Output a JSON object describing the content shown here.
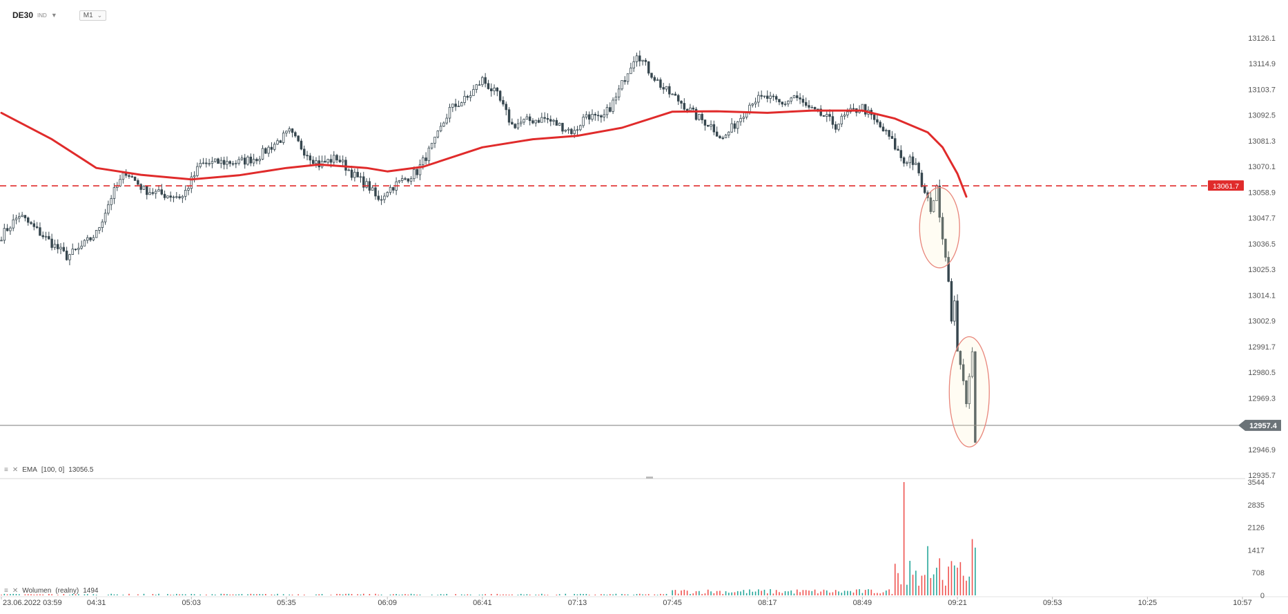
{
  "instrument": {
    "symbol": "DE30",
    "subtype": "IND",
    "timeframe": "M1"
  },
  "indicators": {
    "ema_label": "EMA",
    "ema_params": "[100, 0]",
    "ema_value": "13056.5",
    "volume_label": "Wolumen",
    "volume_params": "(realny)",
    "volume_value": "1494"
  },
  "colors": {
    "ema": "#e02b2b",
    "candle": "#37474f",
    "volume_up": "#26a69a",
    "volume_down": "#ef5350",
    "highlight_ellipse": "#e8857a",
    "level_line": "#e02b2b",
    "current_price_bg": "#6b7378",
    "level_label_bg": "#e02b2b"
  },
  "icons": [
    "settings-lines-icon",
    "close-x-icon",
    "dropdown-caret-icon"
  ],
  "chart_data": {
    "type": "candlestick",
    "price_axis_ticks": [
      "13126.1",
      "13114.9",
      "13103.7",
      "13092.5",
      "13081.3",
      "13070.1",
      "13058.9",
      "13047.7",
      "13036.5",
      "13025.3",
      "13014.1",
      "13002.9",
      "12991.7",
      "12980.5",
      "12969.3",
      "12957.4",
      "12946.9",
      "12935.7"
    ],
    "price_range": [
      12935.7,
      13126.1
    ],
    "volume_axis_ticks": [
      "3544",
      "2835",
      "2126",
      "1417",
      "708",
      "0"
    ],
    "volume_range": [
      0,
      3544
    ],
    "time_axis_labels": [
      "23.06.2022 03:59",
      "04:31",
      "05:03",
      "05:35",
      "06:09",
      "06:41",
      "07:13",
      "07:45",
      "08:17",
      "08:49",
      "09:21",
      "09:53",
      "10:25",
      "10:57"
    ],
    "x_range": [
      "03:59",
      "10:57"
    ],
    "horizontal_level": {
      "value": 13061.7,
      "label": "13061.7",
      "style": "dashed"
    },
    "current_price": {
      "value": 12957.4,
      "label": "12957.4"
    },
    "ema_series_anchors": [
      {
        "time": "03:59",
        "value": 13093.5
      },
      {
        "time": "04:16",
        "value": 13082.0
      },
      {
        "time": "04:31",
        "value": 13069.5
      },
      {
        "time": "04:46",
        "value": 13066.5
      },
      {
        "time": "05:03",
        "value": 13064.5
      },
      {
        "time": "05:19",
        "value": 13066.3
      },
      {
        "time": "05:35",
        "value": 13069.5
      },
      {
        "time": "05:46",
        "value": 13071.0
      },
      {
        "time": "06:02",
        "value": 13069.5
      },
      {
        "time": "06:09",
        "value": 13068.0
      },
      {
        "time": "06:21",
        "value": 13070.0
      },
      {
        "time": "06:41",
        "value": 13078.5
      },
      {
        "time": "06:58",
        "value": 13082.0
      },
      {
        "time": "07:13",
        "value": 13083.5
      },
      {
        "time": "07:28",
        "value": 13087.0
      },
      {
        "time": "07:45",
        "value": 13094.0
      },
      {
        "time": "08:00",
        "value": 13094.2
      },
      {
        "time": "08:17",
        "value": 13093.5
      },
      {
        "time": "08:32",
        "value": 13094.5
      },
      {
        "time": "08:49",
        "value": 13094.5
      },
      {
        "time": "09:00",
        "value": 13091.0
      },
      {
        "time": "09:11",
        "value": 13085.0
      },
      {
        "time": "09:16",
        "value": 13078.5
      },
      {
        "time": "09:21",
        "value": 13067.0
      },
      {
        "time": "09:24",
        "value": 13057.0
      }
    ],
    "price_anchors": [
      {
        "time": "03:59",
        "value": 13040
      },
      {
        "time": "04:05",
        "value": 13049
      },
      {
        "time": "04:13",
        "value": 13040
      },
      {
        "time": "04:21",
        "value": 13031
      },
      {
        "time": "04:25",
        "value": 13034
      },
      {
        "time": "04:31",
        "value": 13041
      },
      {
        "time": "04:36",
        "value": 13057
      },
      {
        "time": "04:41",
        "value": 13068
      },
      {
        "time": "04:47",
        "value": 13060
      },
      {
        "time": "04:53",
        "value": 13058
      },
      {
        "time": "05:00",
        "value": 13057
      },
      {
        "time": "05:06",
        "value": 13071
      },
      {
        "time": "05:13",
        "value": 13072
      },
      {
        "time": "05:19",
        "value": 13072
      },
      {
        "time": "05:25",
        "value": 13074
      },
      {
        "time": "05:31",
        "value": 13080
      },
      {
        "time": "05:36",
        "value": 13085
      },
      {
        "time": "05:41",
        "value": 13077
      },
      {
        "time": "05:46",
        "value": 13071
      },
      {
        "time": "05:52",
        "value": 13074
      },
      {
        "time": "05:58",
        "value": 13066
      },
      {
        "time": "06:03",
        "value": 13061
      },
      {
        "time": "06:06",
        "value": 13055
      },
      {
        "time": "06:09",
        "value": 13060
      },
      {
        "time": "06:14",
        "value": 13064
      },
      {
        "time": "06:19",
        "value": 13068
      },
      {
        "time": "06:25",
        "value": 13081
      },
      {
        "time": "06:30",
        "value": 13095
      },
      {
        "time": "06:36",
        "value": 13100
      },
      {
        "time": "06:41",
        "value": 13108
      },
      {
        "time": "06:46",
        "value": 13101
      },
      {
        "time": "06:51",
        "value": 13088
      },
      {
        "time": "06:56",
        "value": 13090
      },
      {
        "time": "07:02",
        "value": 13091
      },
      {
        "time": "07:07",
        "value": 13088
      },
      {
        "time": "07:12",
        "value": 13085
      },
      {
        "time": "07:16",
        "value": 13093
      },
      {
        "time": "07:21",
        "value": 13090
      },
      {
        "time": "07:26",
        "value": 13100
      },
      {
        "time": "07:30",
        "value": 13112
      },
      {
        "time": "07:33",
        "value": 13120
      },
      {
        "time": "07:37",
        "value": 13112
      },
      {
        "time": "07:42",
        "value": 13104
      },
      {
        "time": "07:48",
        "value": 13098
      },
      {
        "time": "07:53",
        "value": 13092
      },
      {
        "time": "07:58",
        "value": 13088
      },
      {
        "time": "08:02",
        "value": 13082
      },
      {
        "time": "08:07",
        "value": 13090
      },
      {
        "time": "08:12",
        "value": 13099
      },
      {
        "time": "08:17",
        "value": 13100
      },
      {
        "time": "08:22",
        "value": 13097
      },
      {
        "time": "08:26",
        "value": 13101
      },
      {
        "time": "08:31",
        "value": 13095
      },
      {
        "time": "08:36",
        "value": 13092
      },
      {
        "time": "08:40",
        "value": 13088
      },
      {
        "time": "08:44",
        "value": 13093
      },
      {
        "time": "08:49",
        "value": 13096
      },
      {
        "time": "08:53",
        "value": 13090
      },
      {
        "time": "08:58",
        "value": 13083
      },
      {
        "time": "09:03",
        "value": 13072
      },
      {
        "time": "09:05",
        "value": 13074
      },
      {
        "time": "09:07",
        "value": 13070
      },
      {
        "time": "09:10",
        "value": 13058
      },
      {
        "time": "09:12",
        "value": 13052
      },
      {
        "time": "09:14",
        "value": 13060
      },
      {
        "time": "09:16",
        "value": 13040
      },
      {
        "time": "09:18",
        "value": 13022
      },
      {
        "time": "09:19",
        "value": 13002
      },
      {
        "time": "09:20",
        "value": 13010
      },
      {
        "time": "09:21",
        "value": 12991
      },
      {
        "time": "09:22",
        "value": 12985
      },
      {
        "time": "09:23",
        "value": 12975
      },
      {
        "time": "09:24",
        "value": 12966
      },
      {
        "time": "09:25",
        "value": 12980
      },
      {
        "time": "09:26",
        "value": 12991
      },
      {
        "time": "09:27",
        "value": 12950
      }
    ],
    "volume_spikes": [
      {
        "time": "09:03",
        "value": 3544,
        "direction": "down"
      },
      {
        "time": "09:05",
        "value": 1080,
        "direction": "up"
      },
      {
        "time": "09:11",
        "value": 1540,
        "direction": "up"
      },
      {
        "time": "09:15",
        "value": 1160,
        "direction": "down"
      },
      {
        "time": "09:18",
        "value": 900,
        "direction": "down"
      },
      {
        "time": "09:26",
        "value": 1760,
        "direction": "down"
      },
      {
        "time": "09:27",
        "value": 1494,
        "direction": "up"
      }
    ],
    "annotations": [
      {
        "type": "ellipse",
        "time": "09:15",
        "price_top": 13061,
        "price_bottom": 13026
      },
      {
        "type": "ellipse",
        "time": "09:25",
        "price_top": 12996,
        "price_bottom": 12948
      }
    ]
  }
}
